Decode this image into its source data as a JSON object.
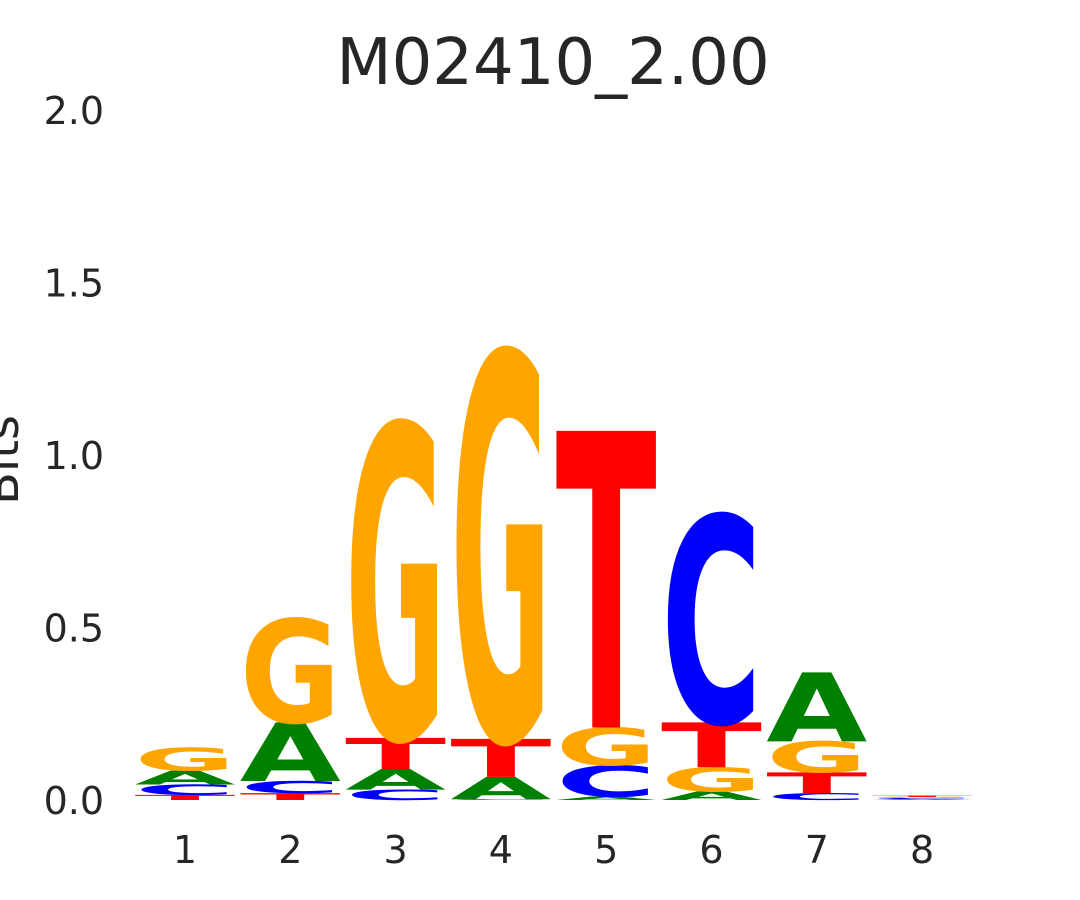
{
  "chart_data": {
    "type": "logo",
    "title": "M02410_2.00",
    "ylabel": "Bits",
    "categories": [
      "1",
      "2",
      "3",
      "4",
      "5",
      "6",
      "7",
      "8"
    ],
    "series": [
      {
        "name": "A",
        "color": "#008000",
        "values": [
          0.04,
          0.17,
          0.06,
          0.065,
          0.01,
          0.025,
          0.2,
          0.003
        ]
      },
      {
        "name": "C",
        "color": "#0000ff",
        "values": [
          0.03,
          0.035,
          0.03,
          0.002,
          0.09,
          0.6,
          0.02,
          0.003
        ]
      },
      {
        "name": "G",
        "color": "#ffa500",
        "values": [
          0.065,
          0.3,
          0.91,
          1.12,
          0.11,
          0.07,
          0.09,
          0.003
        ]
      },
      {
        "name": "T",
        "color": "#ff0000",
        "values": [
          0.015,
          0.02,
          0.09,
          0.11,
          0.86,
          0.13,
          0.06,
          0.004
        ]
      }
    ],
    "ylim": [
      0,
      2
    ],
    "yticks": [
      {
        "value": 0,
        "label": "0.0"
      },
      0.5,
      {
        "value": 1,
        "label": "1.0"
      },
      1.5,
      {
        "value": 2,
        "label": "2.0"
      }
    ]
  }
}
